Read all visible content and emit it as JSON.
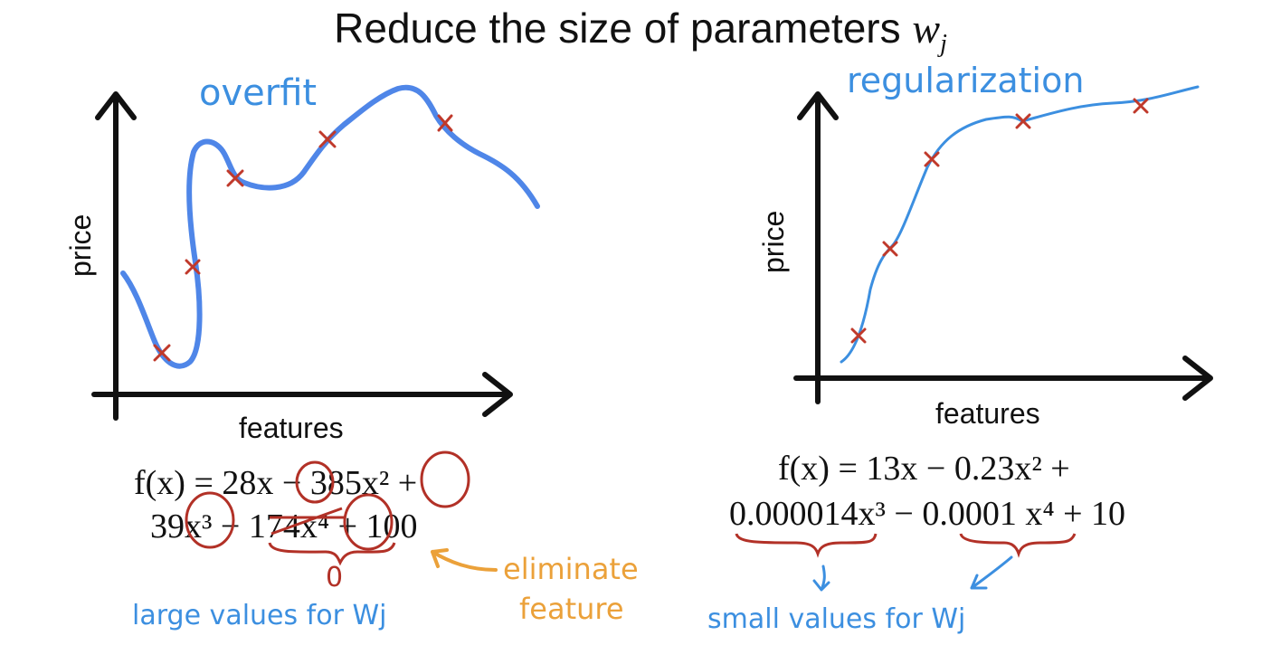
{
  "title": {
    "text": "Reduce the size of parameters ",
    "var": "w",
    "sub": "j"
  },
  "left_panel": {
    "label": "overfit",
    "ylabel": "price",
    "xlabel": "features",
    "equation_line1": "f(x) = 28x − 385x² +",
    "equation_line2": "39x³ − 174x⁴ + 100",
    "zero_note": "0",
    "eliminate_line1": "eliminate",
    "eliminate_line2": "feature",
    "note": "large values for Wj"
  },
  "right_panel": {
    "label": "regularization",
    "ylabel": "price",
    "xlabel": "features",
    "equation_line1": "f(x) = 13x − 0.23x² +",
    "equation_line2": "0.000014x³ − 0.0001 x⁴ + 10",
    "note": "small values for Wj"
  },
  "colors": {
    "curve": "#4f86e8",
    "thin_curve": "#3c8fe0",
    "marker": "#c0392b",
    "annotation_red": "#b23127",
    "annotation_orange": "#eba13a"
  }
}
